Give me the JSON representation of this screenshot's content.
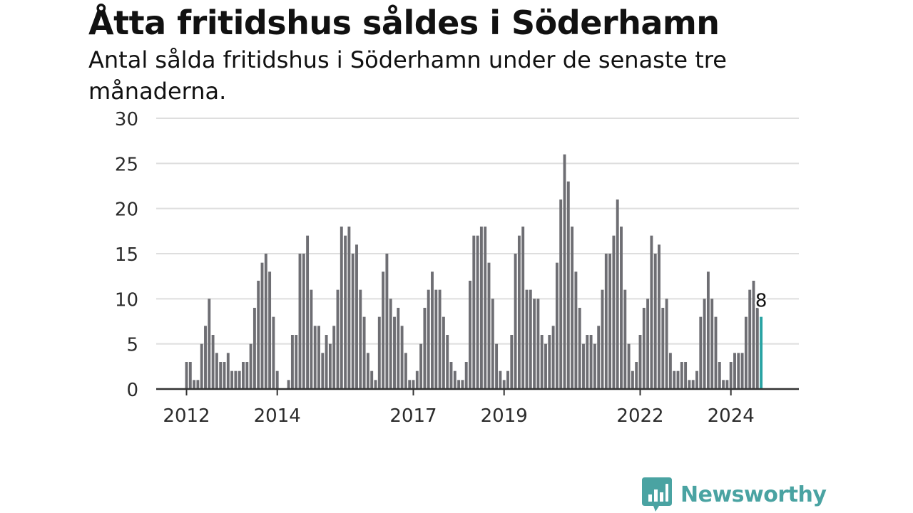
{
  "chart_data": {
    "type": "bar",
    "title": "Åtta fritidshus såldes i Söderhamn",
    "subtitle": "Antal sålda fritidshus i Söderhamn under de senaste tre månaderna.",
    "xlabel": "",
    "ylabel": "",
    "ylim": [
      0,
      30
    ],
    "y_ticks": [
      0,
      5,
      10,
      15,
      20,
      25,
      30
    ],
    "x_tick_labels": [
      {
        "label": "2012",
        "index": 0
      },
      {
        "label": "2014",
        "index": 24
      },
      {
        "label": "2017",
        "index": 60
      },
      {
        "label": "2019",
        "index": 84
      },
      {
        "label": "2022",
        "index": 120
      },
      {
        "label": "2024",
        "index": 144
      }
    ],
    "grid": true,
    "bar_color": "#6e6e73",
    "highlight_color": "#29a3a3",
    "highlight_label": "8",
    "values": [
      3,
      3,
      1,
      1,
      5,
      7,
      10,
      6,
      4,
      3,
      3,
      4,
      2,
      2,
      2,
      3,
      3,
      5,
      9,
      12,
      14,
      15,
      13,
      8,
      2,
      0,
      0,
      1,
      6,
      6,
      15,
      15,
      17,
      11,
      7,
      7,
      4,
      6,
      5,
      7,
      11,
      18,
      17,
      18,
      15,
      16,
      11,
      8,
      4,
      2,
      1,
      8,
      13,
      15,
      10,
      8,
      9,
      7,
      4,
      1,
      1,
      2,
      5,
      9,
      11,
      13,
      11,
      11,
      8,
      6,
      3,
      2,
      1,
      1,
      3,
      12,
      17,
      17,
      18,
      18,
      14,
      10,
      5,
      2,
      1,
      2,
      6,
      15,
      17,
      18,
      11,
      11,
      10,
      10,
      6,
      5,
      6,
      7,
      14,
      21,
      26,
      23,
      18,
      13,
      9,
      5,
      6,
      6,
      5,
      7,
      11,
      15,
      15,
      17,
      21,
      18,
      11,
      5,
      2,
      3,
      6,
      9,
      10,
      17,
      15,
      16,
      9,
      10,
      4,
      2,
      2,
      3,
      3,
      1,
      1,
      2,
      8,
      10,
      13,
      10,
      8,
      3,
      1,
      1,
      3,
      4,
      4,
      4,
      8,
      11,
      12,
      9,
      8
    ]
  },
  "branding": {
    "logo_text": "Newsworthy",
    "logo_icon": "bar-chart-speech-bubble-icon"
  }
}
